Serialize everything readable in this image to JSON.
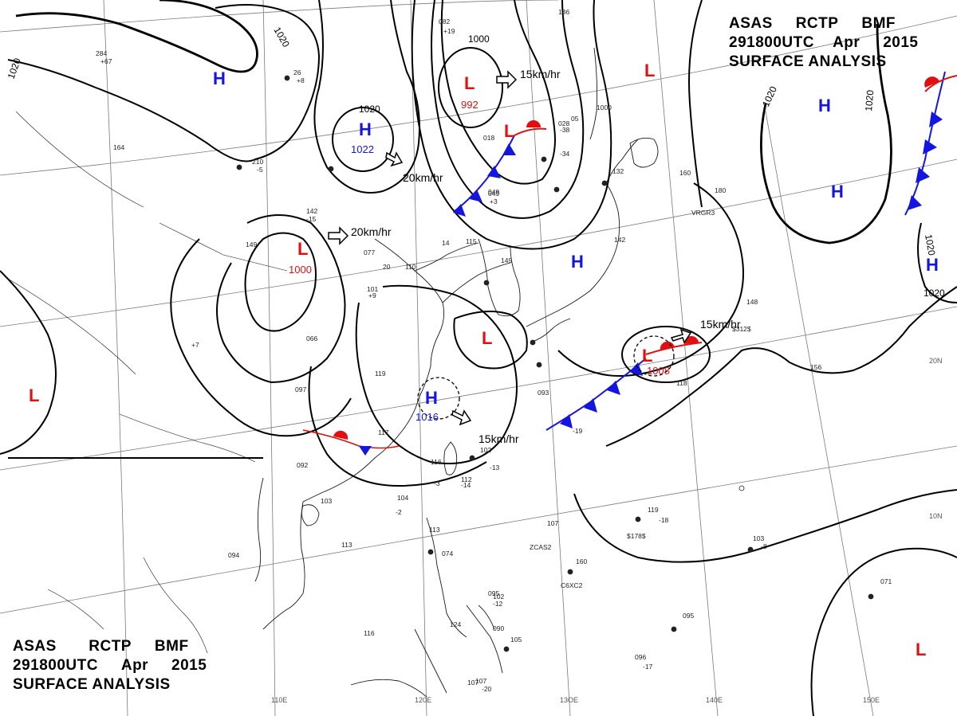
{
  "header": {
    "agency_line": [
      "ASAS",
      "RCTP",
      "BMF"
    ],
    "time_line": [
      "291800UTC",
      "Apr",
      "2015"
    ],
    "product_line": "SURFACE ANALYSIS"
  },
  "footer": {
    "agency_line": [
      "ASAS",
      "RCTP",
      "BMF"
    ],
    "time_line": [
      "291800UTC",
      "Apr",
      "2015"
    ],
    "product_line": "SURFACE ANALYSIS"
  },
  "graticule": {
    "longitudes": [
      "110E",
      "120E",
      "13OE",
      "140E",
      "150E"
    ],
    "latitudes": [
      "20N",
      "10N"
    ]
  },
  "pressure_centers": [
    {
      "id": "h-nw",
      "type": "H",
      "value": ""
    },
    {
      "id": "h-central",
      "type": "H",
      "value": "1022"
    },
    {
      "id": "l-north",
      "type": "L",
      "value": "992"
    },
    {
      "id": "l-ne",
      "type": "L",
      "value": ""
    },
    {
      "id": "l-ne2",
      "type": "L",
      "value": ""
    },
    {
      "id": "l-west",
      "type": "L",
      "value": "1000"
    },
    {
      "id": "h-japan",
      "type": "H",
      "value": ""
    },
    {
      "id": "l-korea",
      "type": "L",
      "value": ""
    },
    {
      "id": "h-ecs",
      "type": "H",
      "value": "1016"
    },
    {
      "id": "l-pacific",
      "type": "L",
      "value": "1008"
    },
    {
      "id": "l-far-west",
      "type": "L",
      "value": ""
    },
    {
      "id": "h-e1",
      "type": "H",
      "value": ""
    },
    {
      "id": "h-e2",
      "type": "H",
      "value": ""
    },
    {
      "id": "h-e3",
      "type": "H",
      "value": ""
    },
    {
      "id": "l-se",
      "type": "L",
      "value": ""
    }
  ],
  "isobar_labels": [
    "1020",
    "1020",
    "1000",
    "1020",
    "1020",
    "1020",
    "1020",
    "1020"
  ],
  "motion_vectors": [
    "15km/hr",
    "20km/hr",
    "20km/hr",
    "15km/hr",
    "15km/hr"
  ],
  "station_labels": [
    "ZCAS2",
    "C6XC2",
    "VRGR3",
    "$178$",
    "$312$"
  ],
  "station_obs": [
    "082",
    "+19",
    "136",
    "284",
    "+67",
    "26",
    "+8",
    "164",
    "210",
    "-5",
    "149",
    "142",
    "-15",
    "101",
    "+7",
    "+9",
    "049",
    "077",
    "20",
    "110",
    "115",
    "149",
    "14",
    "119",
    "097",
    "066",
    "117",
    "116",
    "092",
    "103",
    "104",
    "094",
    "113",
    "107",
    "160",
    "119",
    "103",
    "156",
    "093",
    "112",
    "102",
    "107",
    "118",
    "148",
    "071",
    "095",
    "096",
    "105",
    "095",
    "090",
    "116",
    "107",
    "113",
    "074",
    "102",
    "124",
    "142",
    "132",
    "180",
    "160",
    "028",
    "018",
    "-38",
    "-34",
    "1000",
    "05",
    "049",
    "+3",
    "-13",
    "-14",
    "-12",
    "-17",
    "-20",
    "-18",
    "-19",
    "-8",
    "-3",
    "-2"
  ],
  "colors": {
    "isobar": "#000000",
    "high": "#1515e0",
    "low": "#e01010",
    "cold_front": "#1515e0",
    "warm_front": "#e01010",
    "coastline": "#1a1a1a",
    "graticule": "#7a7a7a",
    "background": "#ffffff"
  }
}
